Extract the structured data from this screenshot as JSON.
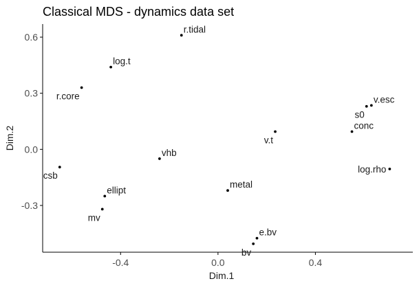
{
  "chart_data": {
    "type": "scatter",
    "title": "Classical MDS - dynamics data set",
    "xlabel": "Dim.1",
    "ylabel": "Dim.2",
    "xlim": [
      -0.72,
      0.8
    ],
    "ylim": [
      -0.55,
      0.67
    ],
    "x_ticks": [
      -0.4,
      0.0,
      0.4
    ],
    "x_tick_labels": [
      "-0.4",
      "0.0",
      "0.4"
    ],
    "y_ticks": [
      0.6,
      0.3,
      0.0,
      -0.3
    ],
    "y_tick_labels": [
      "0.6",
      "0.3",
      "0.0",
      "-0.3"
    ],
    "grid": false,
    "legend": "none",
    "point_color": "#000000",
    "axis_color": "#000000",
    "text_color": "#1a1a1a",
    "points": [
      {
        "label": "r.tidal",
        "x": -0.15,
        "y": 0.61,
        "label_side": "right"
      },
      {
        "label": "log.t",
        "x": -0.44,
        "y": 0.44,
        "label_side": "right"
      },
      {
        "label": "r.core",
        "x": -0.56,
        "y": 0.33,
        "label_side": "below-left"
      },
      {
        "label": "s0",
        "x": 0.61,
        "y": 0.23,
        "label_side": "below-left"
      },
      {
        "label": "v.esc",
        "x": 0.63,
        "y": 0.235,
        "label_side": "right"
      },
      {
        "label": "conc",
        "x": 0.55,
        "y": 0.095,
        "label_side": "right"
      },
      {
        "label": "v.t",
        "x": 0.235,
        "y": 0.095,
        "label_side": "below-left"
      },
      {
        "label": "vhb",
        "x": -0.24,
        "y": -0.05,
        "label_side": "right"
      },
      {
        "label": "csb",
        "x": -0.65,
        "y": -0.095,
        "label_side": "below-left"
      },
      {
        "label": "log.rho",
        "x": 0.705,
        "y": -0.105,
        "label_side": "left"
      },
      {
        "label": "ellipt",
        "x": -0.465,
        "y": -0.25,
        "label_side": "right"
      },
      {
        "label": "metal",
        "x": 0.04,
        "y": -0.22,
        "label_side": "right"
      },
      {
        "label": "mv",
        "x": -0.475,
        "y": -0.32,
        "label_side": "below-left"
      },
      {
        "label": "e.bv",
        "x": 0.16,
        "y": -0.475,
        "label_side": "right"
      },
      {
        "label": "bv",
        "x": 0.145,
        "y": -0.505,
        "label_side": "below-left"
      }
    ]
  }
}
